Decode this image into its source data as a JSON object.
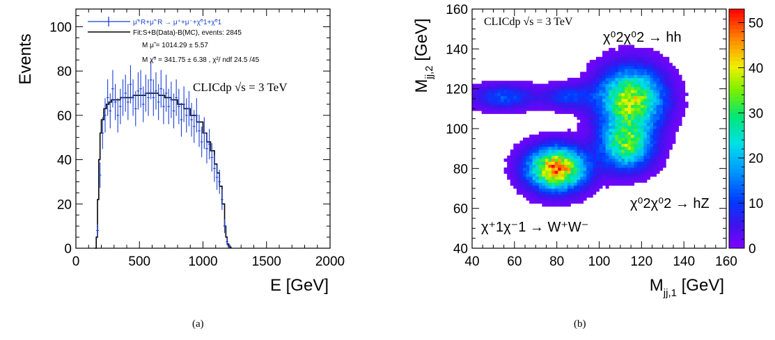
{
  "chart_data": [
    {
      "type": "line",
      "panel": "(a)",
      "xlabel": "E [GeV]",
      "ylabel": "Events",
      "xlim": [
        0,
        2000
      ],
      "ylim": [
        0,
        108
      ],
      "x_ticks": [
        "0",
        "500",
        "1000",
        "1500",
        "2000"
      ],
      "y_ticks": [
        "0",
        "20",
        "40",
        "60",
        "80",
        "100"
      ],
      "annotation": "CLICdp √s = 3 TeV",
      "legend": {
        "placement": "top",
        "entries": [
          {
            "label": "μ̃⁺R+μ̃⁻R → μ⁺+μ⁻+χ̃⁰1+χ̃⁰1",
            "color": "#1a3fd6"
          },
          {
            "label": "Fit:S+B(Data)-B(MC), events: 2845",
            "color": "#000000"
          },
          {
            "label": "M μ̃ =   1014.29 ±  5.57",
            "color": "#000000"
          },
          {
            "label": "M χ̃⁰ =    341.75 ±  6.38 , χ²/ ndf 24.5 /45",
            "color": "#000000"
          }
        ]
      },
      "series": [
        {
          "name": "μ̃⁺R+μ̃⁻R → μ⁺+μ⁻+χ̃⁰1+χ̃⁰1",
          "kind": "points_with_errors",
          "color": "#1a3fd6",
          "x": [
            170,
            190,
            210,
            230,
            250,
            270,
            290,
            310,
            330,
            350,
            370,
            390,
            410,
            430,
            450,
            470,
            490,
            510,
            530,
            550,
            570,
            590,
            610,
            630,
            650,
            670,
            690,
            710,
            730,
            750,
            770,
            790,
            810,
            830,
            850,
            870,
            890,
            910,
            930,
            950,
            970,
            990,
            1010,
            1030,
            1050,
            1070,
            1090,
            1110,
            1130,
            1150,
            1170,
            1190,
            1210
          ],
          "y": [
            8,
            33,
            52,
            60,
            68,
            62,
            72,
            66,
            60,
            64,
            68,
            70,
            66,
            74,
            68,
            63,
            71,
            72,
            65,
            70,
            68,
            76,
            68,
            71,
            66,
            72,
            64,
            70,
            64,
            67,
            62,
            68,
            64,
            58,
            65,
            60,
            63,
            58,
            55,
            60,
            53,
            48,
            52,
            45,
            47,
            41,
            36,
            32,
            30,
            22,
            10,
            3,
            1
          ]
        },
        {
          "name": "Fit:S+B(Data)-B(MC)",
          "kind": "step",
          "color": "#000000",
          "x": [
            150,
            160,
            170,
            180,
            190,
            200,
            220,
            240,
            260,
            280,
            300,
            350,
            400,
            450,
            500,
            550,
            600,
            650,
            700,
            750,
            800,
            850,
            900,
            950,
            1000,
            1030,
            1060,
            1090,
            1110,
            1130,
            1150,
            1170,
            1180,
            1190,
            1200,
            1210,
            1220
          ],
          "y": [
            0,
            5,
            22,
            40,
            52,
            58,
            63,
            65,
            66,
            67,
            67,
            68,
            68,
            69,
            69,
            70,
            70,
            69,
            68,
            67,
            65,
            63,
            60,
            57,
            52,
            48,
            44,
            38,
            34,
            28,
            20,
            10,
            5,
            2,
            1,
            0.5,
            0
          ]
        }
      ]
    },
    {
      "type": "heatmap",
      "panel": "(b)",
      "xlabel": "M_jj,1 [GeV]",
      "ylabel": "M_jj,2 [GeV]",
      "xlim": [
        40,
        160
      ],
      "ylim": [
        40,
        160
      ],
      "x_ticks": [
        "40",
        "60",
        "80",
        "100",
        "120",
        "140",
        "160"
      ],
      "y_ticks": [
        "40",
        "60",
        "80",
        "100",
        "120",
        "140",
        "160"
      ],
      "colorbar": {
        "min": 0,
        "max": 53,
        "ticks": [
          "0",
          "10",
          "20",
          "30",
          "40",
          "50"
        ],
        "palette": "rainbow (violet → blue → cyan → green → yellow → red)"
      },
      "annotation": "CLICdp √s = 3 TeV",
      "labels": [
        "χ⁰2χ⁰2 → hh",
        "χ⁰2χ⁰2 → hZ",
        "χ⁺1χ⁻1 → W⁺W⁻"
      ],
      "clusters": [
        {
          "x": 80,
          "y": 80,
          "peak": 48
        },
        {
          "x": 115,
          "y": 115,
          "peak": 38
        },
        {
          "x": 113,
          "y": 92,
          "peak": 32
        },
        {
          "x": 55,
          "y": 116,
          "peak": 12
        },
        {
          "x": 86,
          "y": 116,
          "peak": 10
        }
      ]
    }
  ],
  "captions": {
    "a": "(a)",
    "b": "(b)"
  }
}
